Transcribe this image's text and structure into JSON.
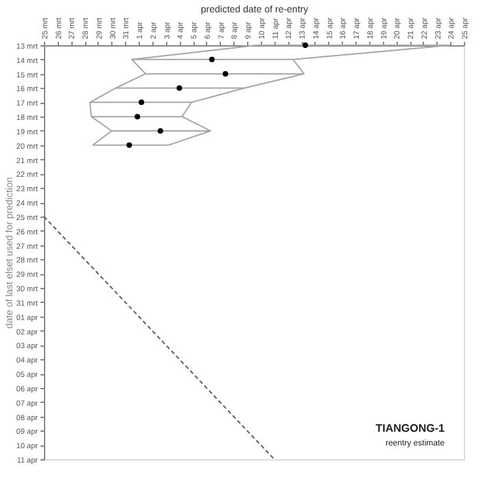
{
  "chart_data": {
    "type": "scatter",
    "orientation": "horizontal",
    "title": "TIANGONG-1",
    "subtitle": "reentry estimate",
    "xlabel": "predicted date of re-entry",
    "ylabel": "date of last elset used for prediction",
    "grid": false,
    "categories": [
      "13 mrt",
      "14 mrt",
      "15 mrt",
      "16 mrt",
      "17 mrt",
      "18 mrt",
      "19 mrt",
      "20 mrt",
      "21 mrt",
      "22 mrt",
      "23 mrt",
      "24 mrt",
      "25 mrt",
      "26 mrt",
      "27 mrt",
      "28 mrt",
      "29 mrt",
      "30 mrt",
      "31 mrt",
      "01 apr",
      "02 apr",
      "03 apr",
      "04 apr",
      "05 apr",
      "06 apr",
      "07 apr",
      "08 apr",
      "09 apr",
      "10 apr",
      "11 apr"
    ],
    "xlim": [
      25,
      56
    ],
    "xticks": [
      {
        "value": 25,
        "label": "25 mrt"
      },
      {
        "value": 26,
        "label": "26 mrt"
      },
      {
        "value": 27,
        "label": "27 mrt"
      },
      {
        "value": 28,
        "label": "28 mrt"
      },
      {
        "value": 29,
        "label": "29 mrt"
      },
      {
        "value": 30,
        "label": "30 mrt"
      },
      {
        "value": 31,
        "label": "31 mrt"
      },
      {
        "value": 32,
        "label": "1 apr"
      },
      {
        "value": 33,
        "label": "2 apr"
      },
      {
        "value": 34,
        "label": "3 apr"
      },
      {
        "value": 35,
        "label": "4 apr"
      },
      {
        "value": 36,
        "label": "5 apr"
      },
      {
        "value": 37,
        "label": "6 apr"
      },
      {
        "value": 38,
        "label": "7 apr"
      },
      {
        "value": 39,
        "label": "8 apr"
      },
      {
        "value": 40,
        "label": "9 apr"
      },
      {
        "value": 41,
        "label": "10 apr"
      },
      {
        "value": 42,
        "label": "11 apr"
      },
      {
        "value": 43,
        "label": "12 apr"
      },
      {
        "value": 44,
        "label": "13 apr"
      },
      {
        "value": 45,
        "label": "14 apr"
      },
      {
        "value": 46,
        "label": "15 apr"
      },
      {
        "value": 47,
        "label": "16 apr"
      },
      {
        "value": 48,
        "label": "17 apr"
      },
      {
        "value": 49,
        "label": "18 apr"
      },
      {
        "value": 50,
        "label": "19 apr"
      },
      {
        "value": 51,
        "label": "20 apr"
      },
      {
        "value": 52,
        "label": "21 apr"
      },
      {
        "value": 53,
        "label": "22 apr"
      },
      {
        "value": 54,
        "label": "23 apr"
      },
      {
        "value": 55,
        "label": "24 apr"
      },
      {
        "value": 56,
        "label": "25 apr"
      }
    ],
    "series": [
      {
        "color": "#000000",
        "marker": "circle",
        "values": [
          44.3,
          37.4,
          38.4,
          35.0,
          32.2,
          31.9,
          33.6,
          31.3,
          null,
          null,
          null,
          null,
          null,
          null,
          null,
          null,
          null,
          null,
          null,
          null,
          null,
          null,
          null,
          null,
          null,
          null,
          null,
          null,
          null,
          null
        ],
        "errors": [
          [
            40.7,
            55.0
          ],
          [
            31.5,
            43.4
          ],
          [
            32.5,
            44.2
          ],
          [
            30.3,
            39.8
          ],
          [
            28.4,
            35.9
          ],
          [
            28.5,
            35.2
          ],
          [
            30.0,
            37.3
          ],
          [
            28.6,
            34.2
          ],
          null,
          null,
          null,
          null,
          null,
          null,
          null,
          null,
          null,
          null,
          null,
          null,
          null,
          null,
          null,
          null,
          null,
          null,
          null,
          null,
          null,
          null
        ]
      },
      {
        "type": "line",
        "line_style": "solid",
        "marker": "none",
        "color": "#a8a8a8",
        "values": [
          40.7,
          31.5,
          32.5,
          30.3,
          28.4,
          28.5,
          30.0,
          28.6,
          null,
          null,
          null,
          null,
          null,
          null,
          null,
          null,
          null,
          null,
          null,
          null,
          null,
          null,
          null,
          null,
          null,
          null,
          null,
          null,
          null,
          null
        ]
      },
      {
        "type": "line",
        "line_style": "solid",
        "marker": "none",
        "color": "#a8a8a8",
        "values": [
          55.0,
          43.4,
          44.2,
          39.8,
          35.9,
          35.2,
          37.3,
          34.2,
          null,
          null,
          null,
          null,
          null,
          null,
          null,
          null,
          null,
          null,
          null,
          null,
          null,
          null,
          null,
          null,
          null,
          null,
          null,
          null,
          null,
          null
        ]
      },
      {
        "type": "line",
        "line_style": "dashed",
        "marker": "none",
        "color": "#606060",
        "values": [
          null,
          null,
          null,
          null,
          null,
          null,
          null,
          null,
          null,
          null,
          null,
          null,
          25,
          26,
          27,
          28,
          29,
          30,
          31,
          32,
          33,
          34,
          35,
          36,
          37,
          38,
          39,
          40,
          41,
          42
        ]
      }
    ]
  }
}
